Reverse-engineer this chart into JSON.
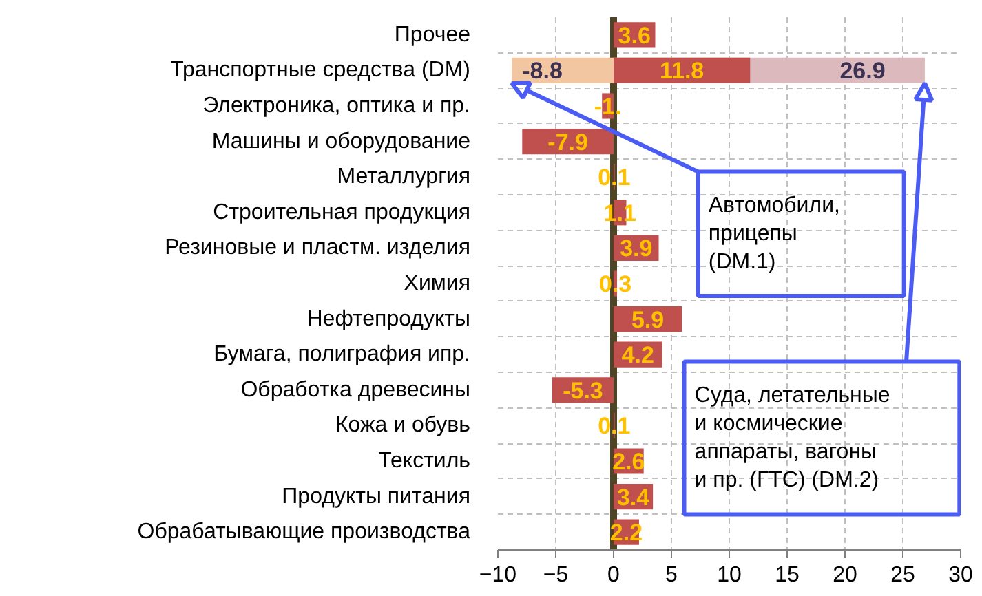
{
  "chart_data": {
    "type": "bar",
    "orientation": "horizontal",
    "categories": [
      "Прочее",
      "Транспортные средства (DM)",
      "Электроника, оптика и пр.",
      "Машины и оборудование",
      "Металлургия",
      "Строительная продукция",
      "Резиновые и пластм. изделия",
      "Химия",
      "Нефтепродукты",
      "Бумага, полиграфия ипр.",
      "Обработка древесины",
      "Кожа и обувь",
      "Текстиль",
      "Продукты питания",
      "Обрабатывающие производства"
    ],
    "series": [
      {
        "color": "#dcb9bc",
        "values": [
          null,
          26.9,
          null,
          null,
          null,
          null,
          null,
          null,
          null,
          null,
          null,
          null,
          null,
          null,
          null
        ],
        "value_labels": [
          null,
          "26.9",
          null,
          null,
          null,
          null,
          null,
          null,
          null,
          null,
          null,
          null,
          null,
          null,
          null
        ]
      },
      {
        "color": "#f3c6a2",
        "values": [
          null,
          -8.8,
          null,
          null,
          null,
          null,
          null,
          null,
          null,
          null,
          null,
          null,
          null,
          null,
          null
        ],
        "value_labels": [
          null,
          "-8.8",
          null,
          null,
          null,
          null,
          null,
          null,
          null,
          null,
          null,
          null,
          null,
          null,
          null
        ]
      },
      {
        "color": "#c0504d",
        "values": [
          3.6,
          11.8,
          -1.0,
          -7.9,
          0.1,
          1.1,
          3.9,
          0.3,
          5.9,
          4.2,
          -5.3,
          0.1,
          2.6,
          3.4,
          2.2
        ],
        "value_labels": [
          "3.6",
          "11.8",
          "-1.",
          "-7.9",
          "0.1",
          "1.1",
          "3.9",
          "0.3",
          "5.9",
          "4.2",
          "-5.3",
          "0.1",
          "2.6",
          "3.4",
          "2.2"
        ]
      }
    ],
    "xlim": [
      -10,
      30
    ],
    "xticks": [
      -10,
      -5,
      0,
      5,
      10,
      15,
      20,
      25,
      30
    ],
    "grid": true,
    "ref_lines": [
      {
        "axis": "x",
        "value": 0,
        "color": "#4d4526"
      }
    ],
    "annotations": [
      {
        "text": "Автомобили,\nприцепы\n(DM.1)",
        "x": -8.8,
        "y": "Транспортные средства (DM)"
      },
      {
        "text": "Суда, летательные\nи космические\nаппараты, вагоны\nи пр. (ГТС)  (DM.2)",
        "x": 26.9,
        "y": "Транспортные средства (DM)"
      }
    ]
  }
}
